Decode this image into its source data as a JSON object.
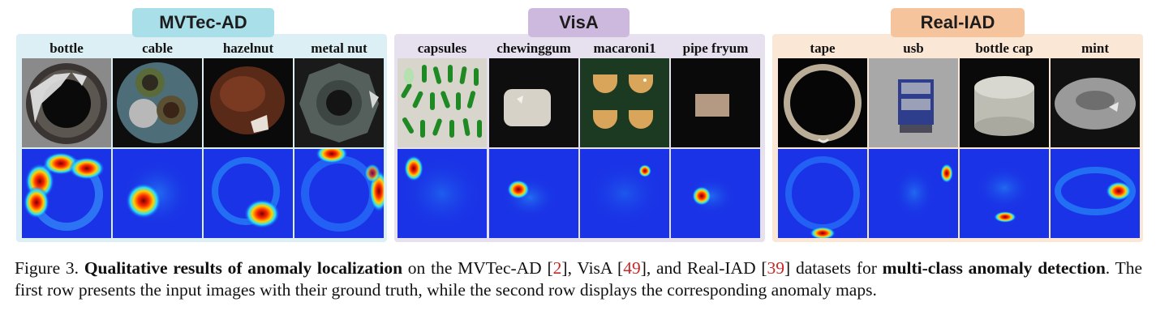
{
  "groups": [
    {
      "name": "MVTec-AD",
      "items": [
        "bottle",
        "cable",
        "hazelnut",
        "metal nut"
      ]
    },
    {
      "name": "VisA",
      "items": [
        "capsules",
        "chewinggum",
        "macaroni1",
        "pipe fryum"
      ]
    },
    {
      "name": "Real-IAD",
      "items": [
        "tape",
        "usb",
        "bottle cap",
        "mint"
      ]
    }
  ],
  "caption": {
    "prefix": "Figure 3.",
    "bold_title": "Qualitative results of anomaly localization",
    "t1": " on the MVTec-AD [",
    "r1": "2",
    "t2": "], VisA [",
    "r2": "49",
    "t3": "], and Real-IAD [",
    "r3": "39",
    "t4": "] datasets for ",
    "bold_task": "multi-class anomaly detection",
    "t5": ".  The first row presents the input images with their ground truth, while the second row displays the corresponding anomaly maps."
  },
  "colors": {
    "mvtec_panel": "#dceff5",
    "mvtec_tag": "#a9dfe9",
    "visa_panel": "#e7e1ef",
    "visa_tag": "#cdb9dd",
    "realiad_panel": "#fbe7d6",
    "realiad_tag": "#f6c49c",
    "heatmap_base": "#1a33e6"
  }
}
